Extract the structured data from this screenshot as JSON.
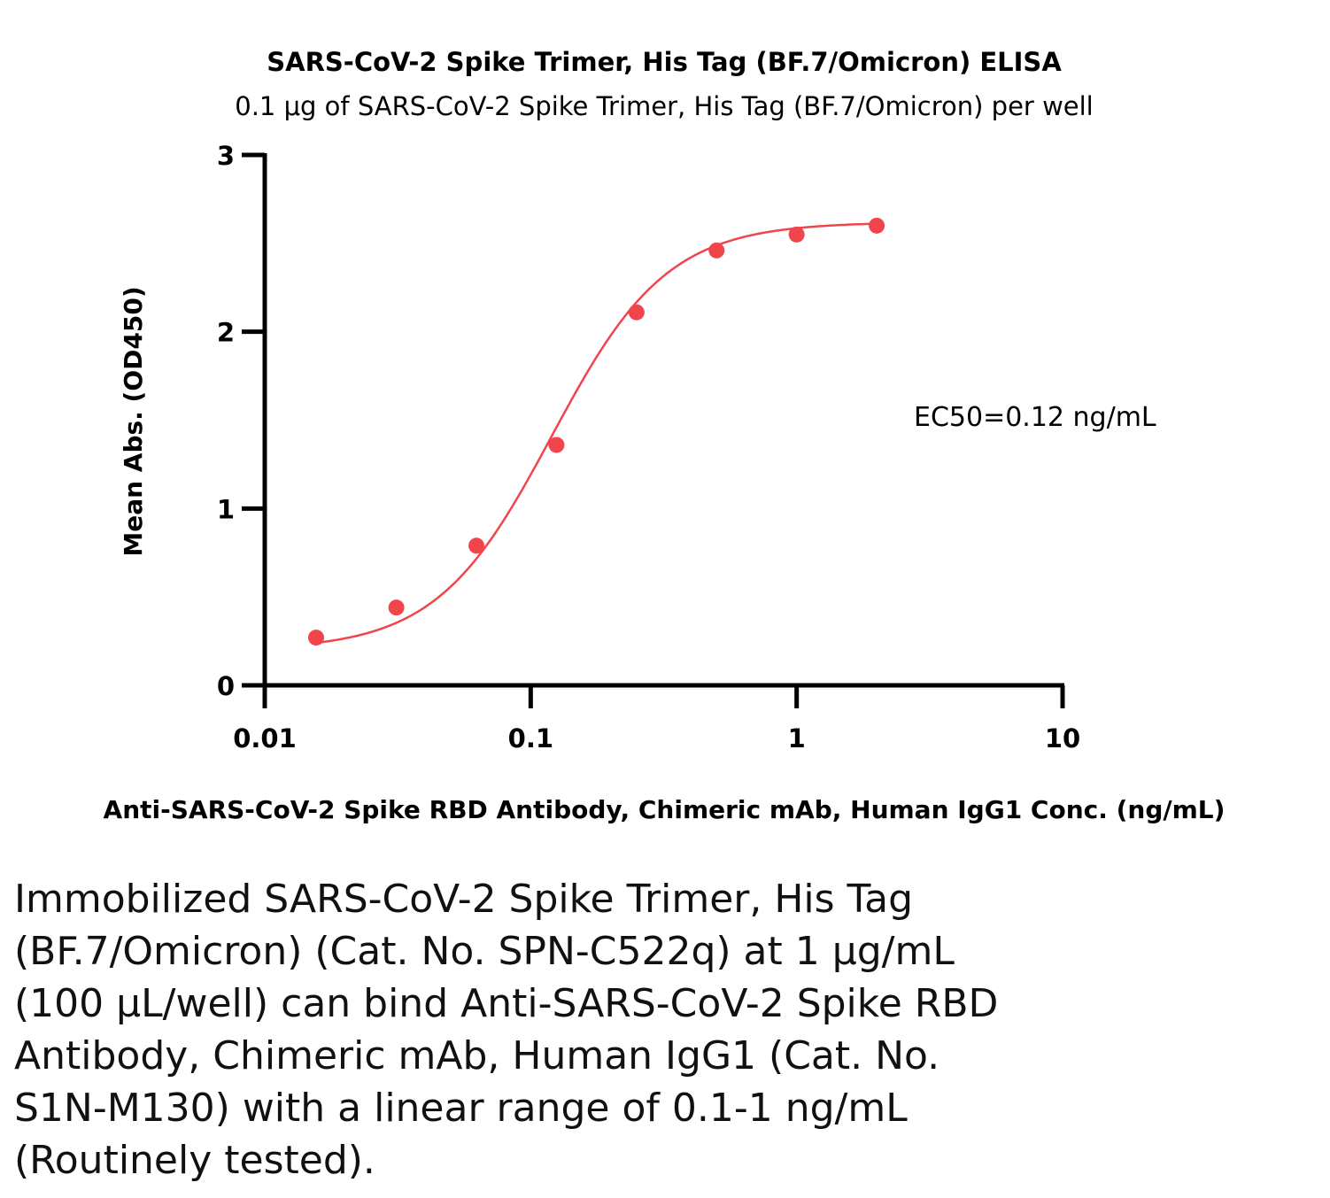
{
  "chart_data": {
    "type": "scatter",
    "title": "SARS-CoV-2 Spike Trimer, His Tag (BF.7/Omicron) ELISA",
    "subtitle": "0.1 μg of SARS-CoV-2 Spike Trimer, His Tag (BF.7/Omicron) per well",
    "xlabel": "Anti-SARS-CoV-2 Spike RBD Antibody, Chimeric mAb, Human IgG1 Conc. (ng/mL)",
    "ylabel": "Mean Abs. (OD450)",
    "xscale": "log",
    "xlim": [
      0.01,
      10
    ],
    "ylim": [
      0,
      3
    ],
    "xticks": [
      "0.01",
      "0.1",
      "1",
      "10"
    ],
    "yticks": [
      "0",
      "1",
      "2",
      "3"
    ],
    "grid": false,
    "annotation": "EC50=0.12 ng/mL",
    "series": [
      {
        "color": "#f0454b",
        "x": [
          0.0156,
          0.03125,
          0.0625,
          0.125,
          0.25,
          0.5,
          1.0,
          2.0
        ],
        "y": [
          0.27,
          0.44,
          0.79,
          1.36,
          2.11,
          2.46,
          2.55,
          2.6
        ],
        "fit": {
          "bottom": 0.2,
          "top": 2.62,
          "ec50": 0.12,
          "hill": 2.0
        }
      }
    ]
  },
  "caption": "Immobilized SARS-CoV-2 Spike Trimer, His Tag\n(BF.7/Omicron) (Cat. No. SPN-C522q) at 1 μg/mL\n(100 μL/well) can bind Anti-SARS-CoV-2 Spike RBD\nAntibody, Chimeric mAb, Human IgG1 (Cat. No.\nS1N-M130) with a linear range of 0.1-1 ng/mL\n(Routinely tested)."
}
